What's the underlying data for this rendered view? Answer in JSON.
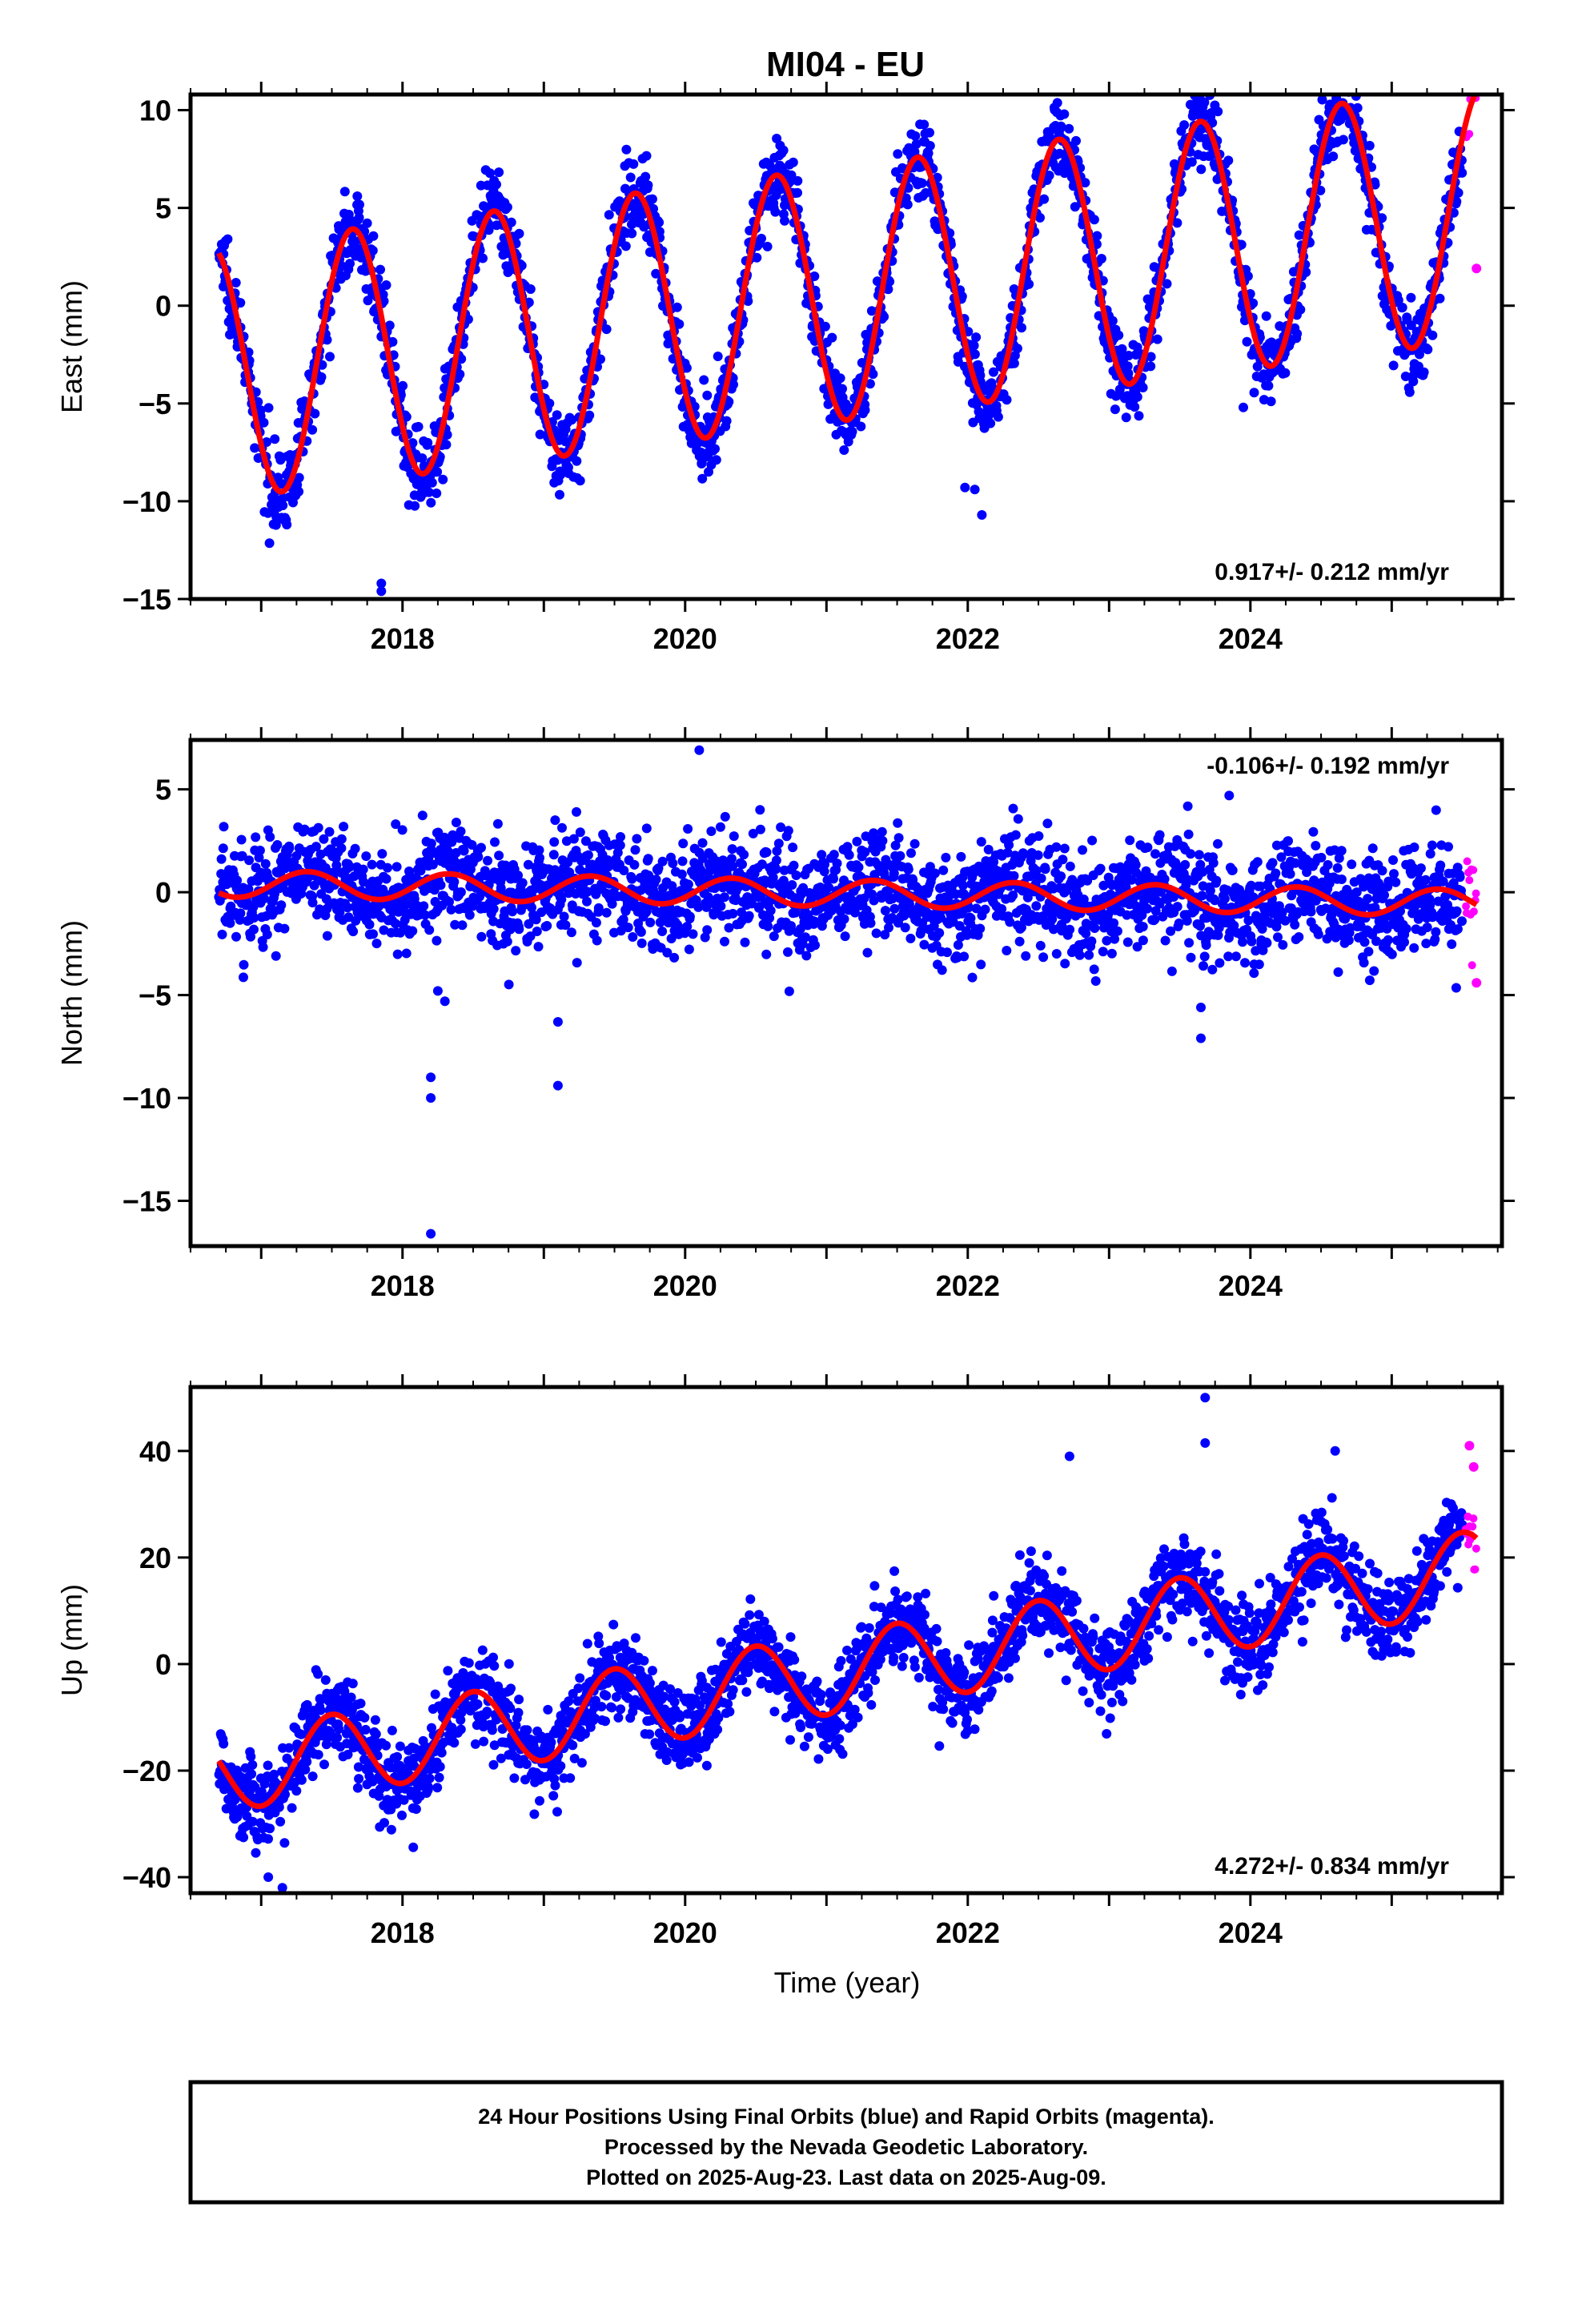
{
  "title": "MI04 - EU",
  "xlabel": "Time (year)",
  "footer": {
    "line1": "24 Hour Positions Using Final Orbits (blue) and Rapid Orbits (magenta).",
    "line2": "Processed by the Nevada Geodetic Laboratory.",
    "line3": "Plotted on 2025-Aug-23. Last data on 2025-Aug-09."
  },
  "colors": {
    "final": "#0000ff",
    "rapid": "#ff00ff",
    "fit": "#ff0000",
    "frame": "#000000"
  },
  "chart_data": [
    {
      "type": "scatter",
      "ylabel": "East (mm)",
      "rate": "0.917+/- 0.212 mm/yr",
      "rate_position": "bottom-right",
      "xlim": [
        2016.5,
        2025.78
      ],
      "ylim": [
        -15,
        10.8
      ],
      "xticks": [
        2018,
        2020,
        2022,
        2024
      ],
      "yticks": [
        -15,
        -10,
        -5,
        0,
        5,
        10
      ],
      "fit": {
        "slope": 0.917,
        "center_year": 2021.1,
        "offset": 0.6,
        "amp_cos": -3.95,
        "amp_sin": -5.15,
        "start": 2016.7,
        "end": 2025.6
      },
      "series": [
        {
          "kind": "final",
          "start": 2016.7,
          "end": 2025.5,
          "noise": 1.0,
          "points": 2400
        },
        {
          "kind": "rapid",
          "start": 2025.52,
          "end": 2025.6,
          "noise": 1.0,
          "points": 12
        }
      ],
      "outliers": [
        [
          2017.85,
          -14.2
        ],
        [
          2017.85,
          -14.6
        ],
        [
          2022.1,
          -10.7
        ],
        [
          2022.05,
          -9.4
        ],
        [
          2021.98,
          -9.3
        ],
        [
          2023.95,
          -5.2
        ],
        [
          2025.6,
          1.9
        ]
      ]
    },
    {
      "type": "scatter",
      "ylabel": "North (mm)",
      "rate": "-0.106+/- 0.192 mm/yr",
      "rate_position": "top-right",
      "xlim": [
        2016.5,
        2025.78
      ],
      "ylim": [
        -17.2,
        7.4
      ],
      "xticks": [
        2018,
        2020,
        2022,
        2024
      ],
      "yticks": [
        -15,
        -10,
        -5,
        0,
        5
      ],
      "fit": {
        "slope": -0.106,
        "center_year": 2021.1,
        "offset": -0.05,
        "amp_cos": -0.31,
        "amp_sin": 0.57,
        "start": 2016.7,
        "end": 2025.6
      },
      "series": [
        {
          "kind": "final",
          "start": 2016.7,
          "end": 2025.5,
          "noise": 1.3,
          "points": 2400
        },
        {
          "kind": "rapid",
          "start": 2025.52,
          "end": 2025.6,
          "noise": 1.3,
          "points": 12
        }
      ],
      "outliers": [
        [
          2018.2,
          -16.6
        ],
        [
          2018.2,
          -9.0
        ],
        [
          2018.2,
          -10.0
        ],
        [
          2018.25,
          -4.8
        ],
        [
          2018.3,
          -5.3
        ],
        [
          2019.1,
          -6.3
        ],
        [
          2019.1,
          -9.4
        ],
        [
          2020.1,
          6.9
        ],
        [
          2023.65,
          -5.6
        ],
        [
          2023.65,
          -7.1
        ],
        [
          2023.85,
          4.7
        ],
        [
          2025.6,
          -4.4
        ]
      ]
    },
    {
      "type": "scatter",
      "ylabel": "Up (mm)",
      "rate": "4.272+/- 0.834 mm/yr",
      "rate_position": "bottom-right",
      "xlim": [
        2016.5,
        2025.78
      ],
      "ylim": [
        -43,
        52
      ],
      "xticks": [
        2018,
        2020,
        2022,
        2024
      ],
      "yticks": [
        -40,
        -20,
        0,
        20,
        40
      ],
      "fit": {
        "slope": 4.272,
        "center_year": 2021.1,
        "offset": -1.6,
        "amp_cos": -7.53,
        "amp_sin": 0.13,
        "start": 2016.7,
        "end": 2025.6
      },
      "series": [
        {
          "kind": "final",
          "start": 2016.7,
          "end": 2025.5,
          "noise": 4.0,
          "points": 2400
        },
        {
          "kind": "rapid",
          "start": 2025.52,
          "end": 2025.6,
          "noise": 4.0,
          "points": 12
        }
      ],
      "outliers": [
        [
          2017.05,
          -40.0
        ],
        [
          2017.15,
          -42.0
        ],
        [
          2022.72,
          39.0
        ],
        [
          2023.68,
          50.0
        ],
        [
          2023.68,
          41.5
        ],
        [
          2024.6,
          40.0
        ],
        [
          2025.55,
          41.0
        ],
        [
          2025.58,
          37.0
        ]
      ]
    }
  ]
}
